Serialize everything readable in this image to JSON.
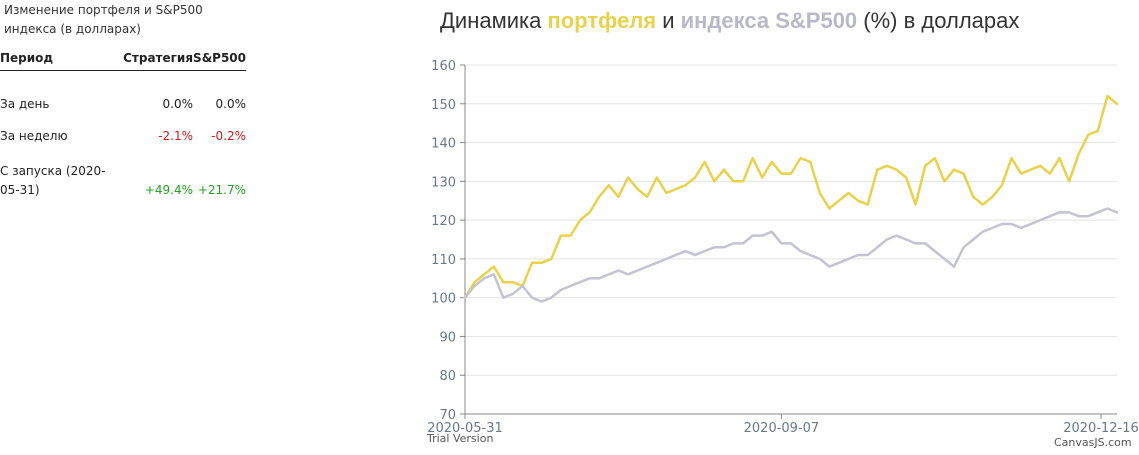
{
  "panel": {
    "heading": "Изменение портфеля и S&P500 индекса (в долларах)",
    "columns": [
      "Период",
      "Стратегия",
      "S&P500"
    ],
    "rows": [
      {
        "period": "За день",
        "strategy": "0.0%",
        "sp500": "0.0%"
      },
      {
        "period": "За неделю",
        "strategy": "-2.1%",
        "sp500": "-0.2%"
      },
      {
        "period": "С запуска (2020-05-31)",
        "strategy": "+49.4%",
        "sp500": "+21.7%"
      }
    ]
  },
  "chart": {
    "title_prefix": "Динамика ",
    "title_strategy": "портфеля",
    "title_mid": " и ",
    "title_sp": "индекса S&P500",
    "title_suffix": " (%) в долларах",
    "watermark": "Trial Version",
    "credit": "CanvasJS.com"
  },
  "colors": {
    "strategy": "#e8d24b",
    "sp500": "#c3c3d1",
    "negative": "#d11a1a",
    "positive": "#22a022"
  },
  "chart_data": {
    "type": "line",
    "title": "Динамика портфеля и индекса S&P500 (%) в долларах",
    "ylim": [
      70,
      160
    ],
    "y_ticks": [
      70,
      80,
      90,
      100,
      110,
      120,
      130,
      140,
      150,
      160
    ],
    "x_ticks": [
      "2020-05-31",
      "2020-09-07",
      "2020-12-16"
    ],
    "xlim": [
      "2020-05-31",
      "2020-12-21"
    ],
    "grid": true,
    "series": [
      {
        "key": "strategy",
        "x": [
          "2020-05-31",
          "2020-06-03",
          "2020-06-06",
          "2020-06-09",
          "2020-06-12",
          "2020-06-15",
          "2020-06-18",
          "2020-06-21",
          "2020-06-24",
          "2020-06-27",
          "2020-06-30",
          "2020-07-03",
          "2020-07-06",
          "2020-07-09",
          "2020-07-12",
          "2020-07-15",
          "2020-07-18",
          "2020-07-21",
          "2020-07-24",
          "2020-07-27",
          "2020-07-30",
          "2020-08-02",
          "2020-08-05",
          "2020-08-08",
          "2020-08-11",
          "2020-08-14",
          "2020-08-17",
          "2020-08-20",
          "2020-08-23",
          "2020-08-26",
          "2020-08-29",
          "2020-09-01",
          "2020-09-04",
          "2020-09-07",
          "2020-09-10",
          "2020-09-13",
          "2020-09-16",
          "2020-09-19",
          "2020-09-22",
          "2020-09-25",
          "2020-09-28",
          "2020-10-01",
          "2020-10-04",
          "2020-10-07",
          "2020-10-10",
          "2020-10-13",
          "2020-10-16",
          "2020-10-19",
          "2020-10-22",
          "2020-10-25",
          "2020-10-28",
          "2020-10-31",
          "2020-11-03",
          "2020-11-06",
          "2020-11-09",
          "2020-11-12",
          "2020-11-15",
          "2020-11-18",
          "2020-11-21",
          "2020-11-24",
          "2020-11-27",
          "2020-11-30",
          "2020-12-03",
          "2020-12-06",
          "2020-12-09",
          "2020-12-12",
          "2020-12-15",
          "2020-12-18",
          "2020-12-21"
        ],
        "values": [
          100,
          104,
          106,
          108,
          104,
          104,
          103,
          109,
          109,
          110,
          116,
          116,
          120,
          122,
          126,
          129,
          126,
          131,
          128,
          126,
          131,
          127,
          128,
          129,
          131,
          135,
          130,
          133,
          130,
          130,
          136,
          131,
          135,
          132,
          132,
          136,
          135,
          127,
          123,
          125,
          127,
          125,
          124,
          133,
          134,
          133,
          131,
          124,
          134,
          136,
          130,
          133,
          132,
          126,
          124,
          126,
          129,
          136,
          132,
          133,
          134,
          132,
          136,
          130,
          137,
          142,
          143,
          152,
          150
        ]
      },
      {
        "key": "sp500",
        "x": [
          "2020-05-31",
          "2020-06-03",
          "2020-06-06",
          "2020-06-09",
          "2020-06-12",
          "2020-06-15",
          "2020-06-18",
          "2020-06-21",
          "2020-06-24",
          "2020-06-27",
          "2020-06-30",
          "2020-07-03",
          "2020-07-06",
          "2020-07-09",
          "2020-07-12",
          "2020-07-15",
          "2020-07-18",
          "2020-07-21",
          "2020-07-24",
          "2020-07-27",
          "2020-07-30",
          "2020-08-02",
          "2020-08-05",
          "2020-08-08",
          "2020-08-11",
          "2020-08-14",
          "2020-08-17",
          "2020-08-20",
          "2020-08-23",
          "2020-08-26",
          "2020-08-29",
          "2020-09-01",
          "2020-09-04",
          "2020-09-07",
          "2020-09-10",
          "2020-09-13",
          "2020-09-16",
          "2020-09-19",
          "2020-09-22",
          "2020-09-25",
          "2020-09-28",
          "2020-10-01",
          "2020-10-04",
          "2020-10-07",
          "2020-10-10",
          "2020-10-13",
          "2020-10-16",
          "2020-10-19",
          "2020-10-22",
          "2020-10-25",
          "2020-10-28",
          "2020-10-31",
          "2020-11-03",
          "2020-11-06",
          "2020-11-09",
          "2020-11-12",
          "2020-11-15",
          "2020-11-18",
          "2020-11-21",
          "2020-11-24",
          "2020-11-27",
          "2020-11-30",
          "2020-12-03",
          "2020-12-06",
          "2020-12-09",
          "2020-12-12",
          "2020-12-15",
          "2020-12-18",
          "2020-12-21"
        ],
        "values": [
          100,
          103,
          105,
          106,
          100,
          101,
          103,
          100,
          99,
          100,
          102,
          103,
          104,
          105,
          105,
          106,
          107,
          106,
          107,
          108,
          109,
          110,
          111,
          112,
          111,
          112,
          113,
          113,
          114,
          114,
          116,
          116,
          117,
          114,
          114,
          112,
          111,
          110,
          108,
          109,
          110,
          111,
          111,
          113,
          115,
          116,
          115,
          114,
          114,
          112,
          110,
          108,
          113,
          115,
          117,
          118,
          119,
          119,
          118,
          119,
          120,
          121,
          122,
          122,
          121,
          121,
          122,
          123,
          122
        ]
      }
    ]
  }
}
